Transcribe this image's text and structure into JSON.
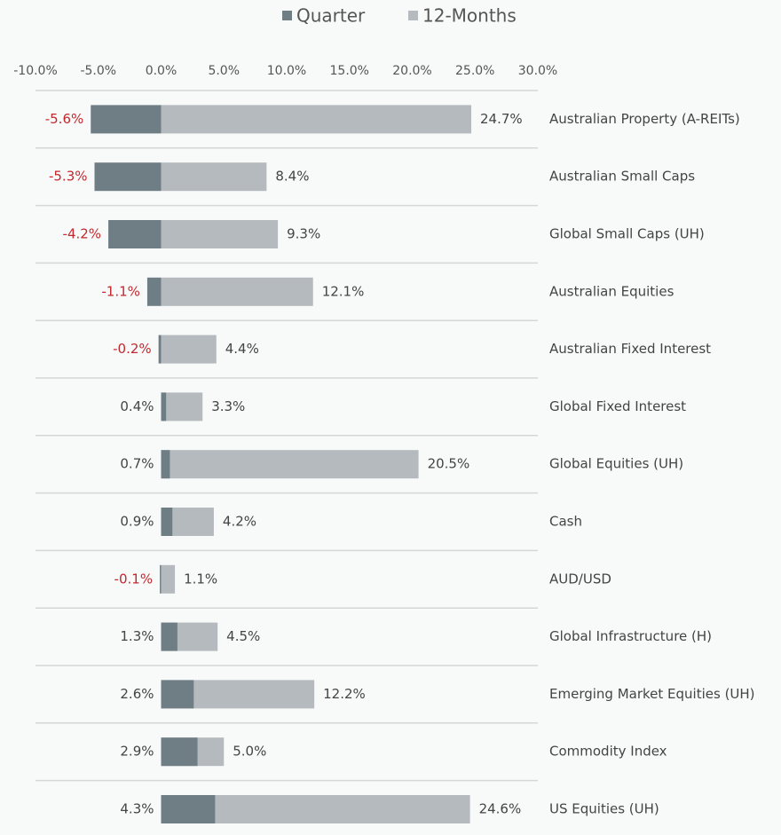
{
  "chart_data": {
    "type": "bar",
    "orientation": "horizontal",
    "categories": [
      "Australian Property (A-REITs)",
      "Australian Small Caps",
      "Global Small Caps (UH)",
      "Australian Equities",
      "Australian Fixed Interest",
      "Global Fixed Interest",
      "Global Equities (UH)",
      "Cash",
      "AUD/USD",
      "Global Infrastructure (H)",
      "Emerging Market Equities (UH)",
      "Commodity Index",
      "US Equities (UH)"
    ],
    "series": [
      {
        "name": "Quarter",
        "color": "#6f7e85",
        "values": [
          -5.6,
          -5.3,
          -4.2,
          -1.1,
          -0.2,
          0.4,
          0.7,
          0.9,
          -0.1,
          1.3,
          2.6,
          2.9,
          4.3
        ],
        "value_labels": [
          "-5.6%",
          "-5.3%",
          "-4.2%",
          "-1.1%",
          "-0.2%",
          "0.4%",
          "0.7%",
          "0.9%",
          "-0.1%",
          "1.3%",
          "2.6%",
          "2.9%",
          "4.3%"
        ]
      },
      {
        "name": "12-Months",
        "color": "#b4babd",
        "values": [
          24.7,
          8.4,
          9.3,
          12.1,
          4.4,
          3.3,
          20.5,
          4.2,
          1.1,
          4.5,
          12.2,
          5.0,
          24.6
        ],
        "value_labels": [
          "24.7%",
          "8.4%",
          "9.3%",
          "12.1%",
          "4.4%",
          "3.3%",
          "20.5%",
          "4.2%",
          "1.1%",
          "4.5%",
          "12.2%",
          "5.0%",
          "24.6%"
        ]
      }
    ],
    "xlim": [
      -10,
      30
    ],
    "xticks": [
      {
        "value": -10,
        "label": "-10.0%"
      },
      {
        "value": -5,
        "label": "-5.0%"
      },
      {
        "value": 0,
        "label": "0.0%"
      },
      {
        "value": 5,
        "label": "5.0%"
      },
      {
        "value": 10,
        "label": "10.0%"
      },
      {
        "value": 15,
        "label": "15.0%"
      },
      {
        "value": 20,
        "label": "20.0%"
      },
      {
        "value": 25,
        "label": "25.0%"
      },
      {
        "value": 30,
        "label": "30.0%"
      }
    ],
    "legend": "top",
    "negative_label_color": "#c3282e"
  }
}
